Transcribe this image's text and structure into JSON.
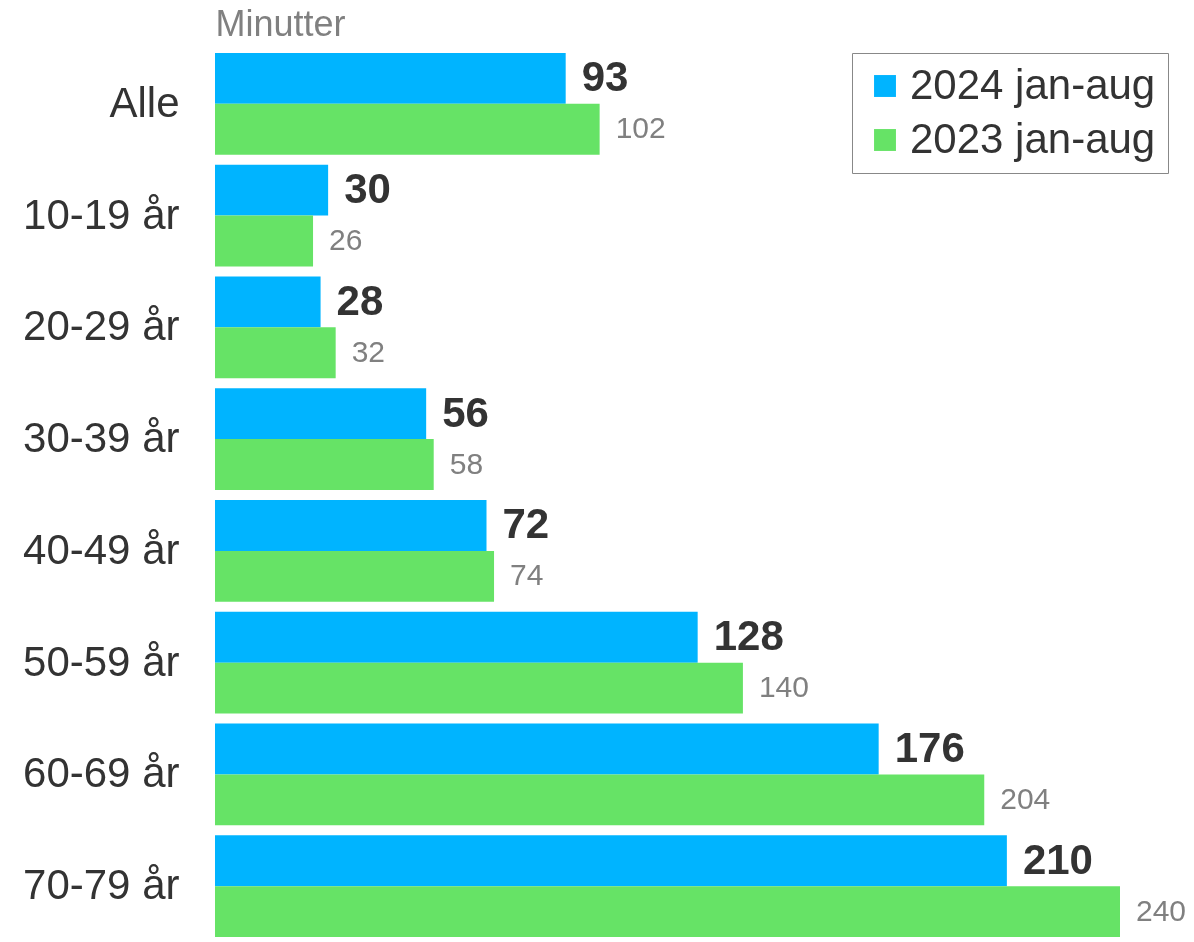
{
  "chart_data": {
    "type": "bar",
    "orientation": "horizontal",
    "xlabel": "Minutter",
    "categories": [
      "Alle",
      "10-19 år",
      "20-29 år",
      "30-39 år",
      "40-49 år",
      "50-59 år",
      "60-69 år",
      "70-79 år"
    ],
    "series": [
      {
        "name": "2024 jan-aug",
        "color": "#00b4ff",
        "values": [
          93,
          30,
          28,
          56,
          72,
          128,
          176,
          210
        ]
      },
      {
        "name": "2023 jan-aug",
        "color": "#66e366",
        "values": [
          102,
          26,
          32,
          58,
          74,
          140,
          204,
          240
        ]
      }
    ],
    "data_labels": true,
    "legend": "top right",
    "tick_labels": "y"
  }
}
